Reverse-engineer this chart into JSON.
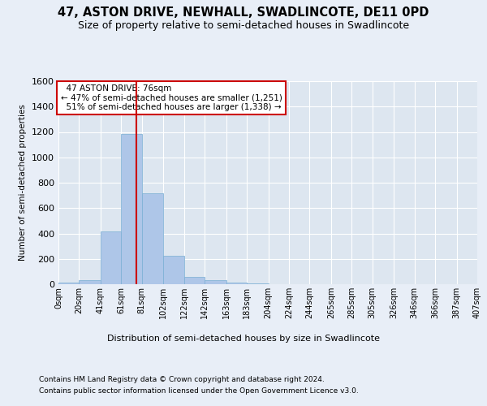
{
  "title": "47, ASTON DRIVE, NEWHALL, SWADLINCOTE, DE11 0PD",
  "subtitle": "Size of property relative to semi-detached houses in Swadlincote",
  "xlabel": "Distribution of semi-detached houses by size in Swadlincote",
  "ylabel": "Number of semi-detached properties",
  "footer1": "Contains HM Land Registry data © Crown copyright and database right 2024.",
  "footer2": "Contains public sector information licensed under the Open Government Licence v3.0.",
  "bin_labels": [
    "0sqm",
    "20sqm",
    "41sqm",
    "61sqm",
    "81sqm",
    "102sqm",
    "122sqm",
    "142sqm",
    "163sqm",
    "183sqm",
    "204sqm",
    "224sqm",
    "244sqm",
    "265sqm",
    "285sqm",
    "305sqm",
    "326sqm",
    "346sqm",
    "366sqm",
    "387sqm",
    "407sqm"
  ],
  "bin_edges": [
    0,
    20,
    41,
    61,
    81,
    102,
    122,
    142,
    163,
    183,
    204,
    224,
    244,
    265,
    285,
    305,
    326,
    346,
    366,
    387,
    407
  ],
  "bar_values": [
    10,
    30,
    415,
    1185,
    720,
    225,
    60,
    30,
    10,
    5,
    0,
    0,
    0,
    0,
    0,
    0,
    0,
    0,
    0,
    0
  ],
  "bar_color": "#aec6e8",
  "bar_edgecolor": "#7aafd4",
  "property_size": 76,
  "property_label": "47 ASTON DRIVE: 76sqm",
  "pct_smaller": 47,
  "n_smaller": 1251,
  "pct_larger": 51,
  "n_larger": 1338,
  "vline_color": "#cc0000",
  "annotation_box_color": "#cc0000",
  "ylim": [
    0,
    1600
  ],
  "yticks": [
    0,
    200,
    400,
    600,
    800,
    1000,
    1200,
    1400,
    1600
  ],
  "bg_color": "#e8eef7",
  "plot_bg": "#dde6f0",
  "grid_color": "#ffffff",
  "title_fontsize": 10.5,
  "subtitle_fontsize": 9
}
